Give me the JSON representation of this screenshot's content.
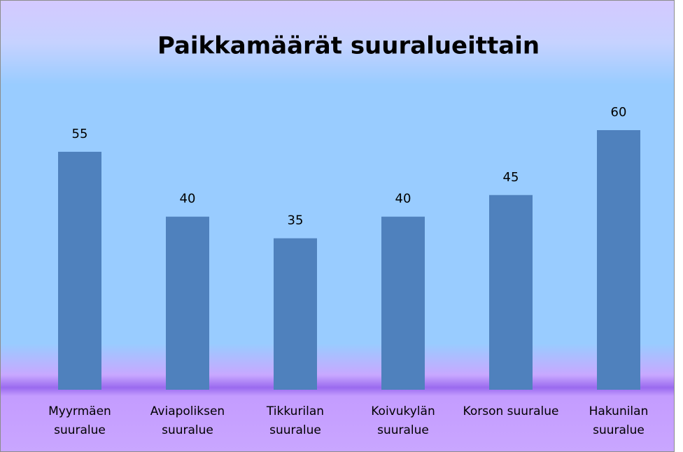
{
  "chart_data": {
    "type": "bar",
    "title": "Paikkamäärät suuralueittain",
    "categories": [
      "Myyrmäen suuralue",
      "Aviapoliksen suuralue",
      "Tikkurilan suuralue",
      "Koivukylän suuralue",
      "Korson suuralue",
      "Hakunilan suuralue"
    ],
    "values": [
      55,
      40,
      35,
      40,
      45,
      60
    ],
    "color": "#4f81bd"
  }
}
